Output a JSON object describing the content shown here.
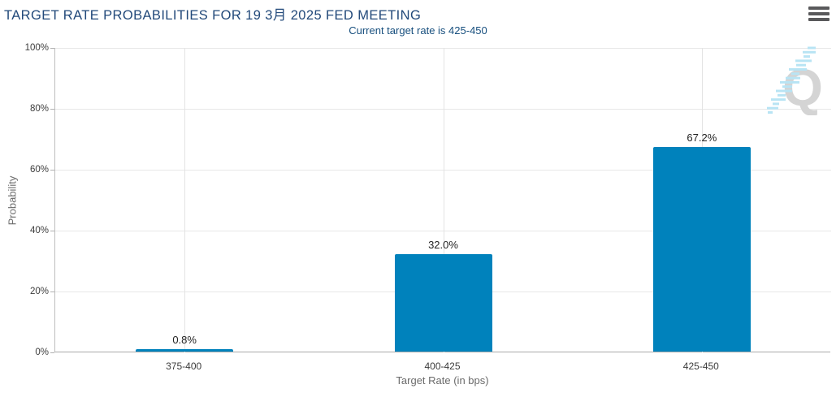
{
  "header": {
    "title": "TARGET RATE PROBABILITIES FOR 19 3月 2025 FED MEETING",
    "menu_icon": "hamburger-menu-icon"
  },
  "watermark": {
    "letter": "Q"
  },
  "chart_data": {
    "type": "bar",
    "title": "TARGET RATE PROBABILITIES FOR 19 3月 2025 FED MEETING",
    "subtitle": "Current target rate is 425-450",
    "categories": [
      "375-400",
      "400-425",
      "425-450"
    ],
    "values": [
      0.8,
      32.0,
      67.2
    ],
    "data_labels": [
      "0.8%",
      "32.0%",
      "67.2%"
    ],
    "xlabel": "Target Rate (in bps)",
    "ylabel": "Probability",
    "ylim": [
      0,
      100
    ],
    "ytick_step": 20,
    "ytick_labels": [
      "0%",
      "20%",
      "40%",
      "60%",
      "80%",
      "100%"
    ],
    "grid": true,
    "legend": "none",
    "colors": {
      "bar": "#0082bc",
      "title": "#22497a",
      "subtitle": "#174f7e",
      "grid_h": "#e7e7e7",
      "grid_v": "#e3e3e3",
      "axis_line": "#a9a9a9",
      "tick_label": "#3c3c3c",
      "axis_title": "#6b6b6b",
      "data_label": "#222222",
      "watermark_gray": "#d4d4d4",
      "watermark_blue": "#b8e4f4"
    }
  }
}
